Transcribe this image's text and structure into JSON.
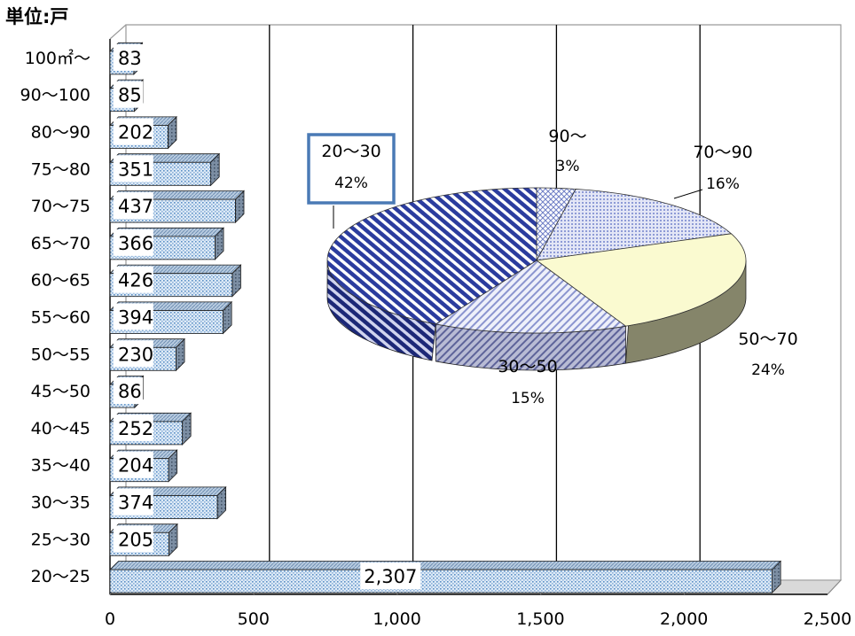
{
  "chart_data": [
    {
      "type": "bar",
      "orientation": "horizontal",
      "unit_label": "単位:戸",
      "categories": [
        "20〜25",
        "25〜30",
        "30〜35",
        "35〜40",
        "40〜45",
        "45〜50",
        "50〜55",
        "55〜60",
        "60〜65",
        "65〜70",
        "70〜75",
        "75〜80",
        "80〜90",
        "90〜100",
        "100㎡〜"
      ],
      "values": [
        2307,
        205,
        374,
        204,
        252,
        86,
        230,
        394,
        426,
        366,
        437,
        351,
        202,
        85,
        83
      ],
      "value_labels": [
        "2,307",
        "205",
        "374",
        "204",
        "252",
        "86",
        "230",
        "394",
        "426",
        "366",
        "437",
        "351",
        "202",
        "85",
        "83"
      ],
      "xlim": [
        0,
        2500
      ],
      "xticks": [
        0,
        500,
        1000,
        1500,
        2000,
        2500
      ],
      "xtick_labels": [
        "0",
        "500",
        "1,000",
        "1,500",
        "2,000",
        "2,500"
      ],
      "grid": "vertical",
      "style": "3d"
    },
    {
      "type": "pie",
      "style": "3d",
      "slices": [
        {
          "label": "90〜",
          "value": 3,
          "value_label": "3%"
        },
        {
          "label": "70〜90",
          "value": 16,
          "value_label": "16%"
        },
        {
          "label": "50〜70",
          "value": 24,
          "value_label": "24%"
        },
        {
          "label": "30〜50",
          "value": 15,
          "value_label": "15%"
        },
        {
          "label": "20〜30",
          "value": 42,
          "value_label": "42%"
        }
      ],
      "highlighted_slice": "20〜30",
      "highlight_color": "#4a7ab5"
    }
  ]
}
